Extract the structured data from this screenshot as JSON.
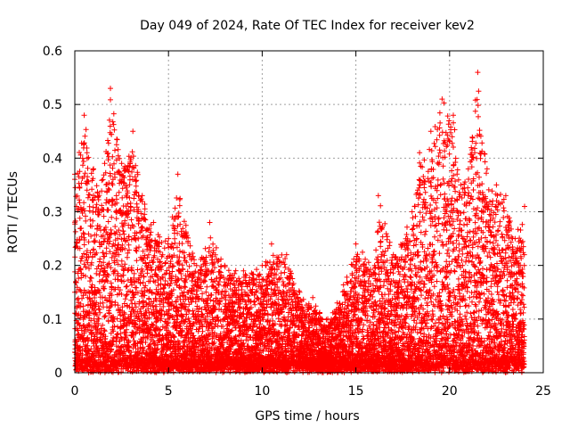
{
  "chart_data": {
    "type": "scatter",
    "title": "Day 049 of 2024, Rate Of TEC Index for receiver kev2",
    "xlabel": "GPS time / hours",
    "ylabel": "ROTI / TECUs",
    "xlim": [
      0,
      25
    ],
    "ylim": [
      0,
      0.6
    ],
    "xticks": [
      0,
      5,
      10,
      15,
      20,
      25
    ],
    "yticks": [
      0,
      0.1,
      0.2,
      0.3,
      0.4,
      0.5,
      0.6
    ],
    "xtick_labels": [
      "0",
      "5",
      "10",
      "15",
      "20",
      "25"
    ],
    "ytick_labels": [
      "0",
      "0.1",
      "0.2",
      "0.3",
      "0.4",
      "0.5",
      "0.6"
    ],
    "grid": true,
    "marker": "+",
    "color": "#ff0000",
    "series": [
      {
        "name": "ROTI",
        "x_range": [
          0,
          24
        ],
        "x_step_hours": 0.01,
        "envelope_points": [
          {
            "x": 0.0,
            "y": 0.37
          },
          {
            "x": 0.5,
            "y": 0.48
          },
          {
            "x": 1.0,
            "y": 0.38
          },
          {
            "x": 1.5,
            "y": 0.36
          },
          {
            "x": 1.9,
            "y": 0.53
          },
          {
            "x": 2.5,
            "y": 0.39
          },
          {
            "x": 3.1,
            "y": 0.45
          },
          {
            "x": 3.6,
            "y": 0.33
          },
          {
            "x": 4.2,
            "y": 0.28
          },
          {
            "x": 5.0,
            "y": 0.25
          },
          {
            "x": 5.5,
            "y": 0.37
          },
          {
            "x": 6.5,
            "y": 0.2
          },
          {
            "x": 7.2,
            "y": 0.28
          },
          {
            "x": 8.0,
            "y": 0.2
          },
          {
            "x": 9.0,
            "y": 0.19
          },
          {
            "x": 10.0,
            "y": 0.2
          },
          {
            "x": 10.5,
            "y": 0.24
          },
          {
            "x": 11.3,
            "y": 0.22
          },
          {
            "x": 12.0,
            "y": 0.15
          },
          {
            "x": 12.7,
            "y": 0.14
          },
          {
            "x": 13.5,
            "y": 0.1
          },
          {
            "x": 14.0,
            "y": 0.13
          },
          {
            "x": 15.0,
            "y": 0.24
          },
          {
            "x": 16.0,
            "y": 0.2
          },
          {
            "x": 16.2,
            "y": 0.33
          },
          {
            "x": 17.0,
            "y": 0.22
          },
          {
            "x": 18.0,
            "y": 0.3
          },
          {
            "x": 18.4,
            "y": 0.41
          },
          {
            "x": 19.0,
            "y": 0.45
          },
          {
            "x": 19.6,
            "y": 0.51
          },
          {
            "x": 20.2,
            "y": 0.48
          },
          {
            "x": 20.6,
            "y": 0.35
          },
          {
            "x": 21.0,
            "y": 0.38
          },
          {
            "x": 21.5,
            "y": 0.56
          },
          {
            "x": 22.0,
            "y": 0.38
          },
          {
            "x": 22.5,
            "y": 0.35
          },
          {
            "x": 23.0,
            "y": 0.33
          },
          {
            "x": 23.5,
            "y": 0.25
          },
          {
            "x": 24.0,
            "y": 0.31
          }
        ],
        "min_value": 0.0,
        "typical_floor": 0.02
      }
    ]
  }
}
